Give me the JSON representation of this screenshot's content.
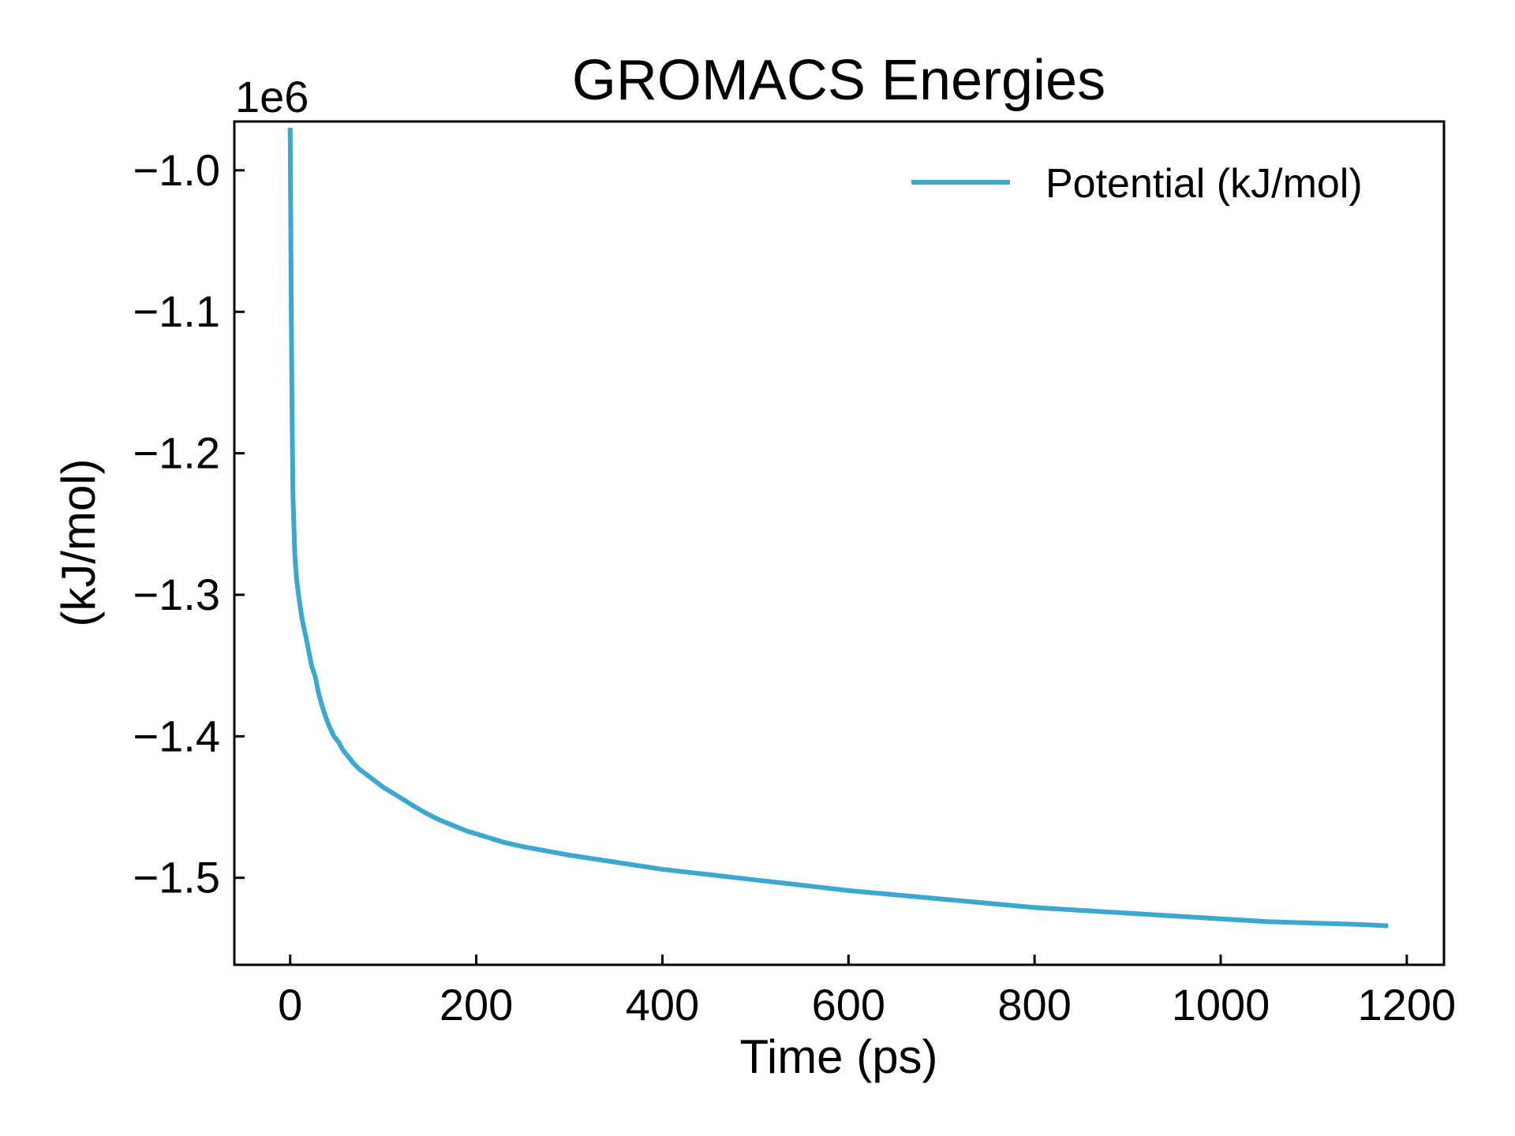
{
  "chart_data": {
    "type": "line",
    "title": "GROMACS Energies",
    "xlabel": "Time (ps)",
    "ylabel": "(kJ/mol)",
    "y_offset_label": "1e6",
    "xlim": [
      -60,
      1240
    ],
    "ylim": [
      -1.5615,
      -0.9655
    ],
    "xticks": [
      {
        "value": 0,
        "label": "0"
      },
      {
        "value": 200,
        "label": "200"
      },
      {
        "value": 400,
        "label": "400"
      },
      {
        "value": 600,
        "label": "600"
      },
      {
        "value": 800,
        "label": "800"
      },
      {
        "value": 1000,
        "label": "1000"
      },
      {
        "value": 1200,
        "label": "1200"
      }
    ],
    "yticks": [
      {
        "value": -1.0,
        "label": "−1.0"
      },
      {
        "value": -1.1,
        "label": "−1.1"
      },
      {
        "value": -1.2,
        "label": "−1.2"
      },
      {
        "value": -1.3,
        "label": "−1.3"
      },
      {
        "value": -1.4,
        "label": "−1.4"
      },
      {
        "value": -1.5,
        "label": "−1.5"
      }
    ],
    "grid": false,
    "legend_position": "top-right",
    "series": [
      {
        "name": "Potential (kJ/mol)",
        "color": "#3ba8d1",
        "x": [
          0,
          1,
          2,
          3,
          5,
          7,
          10,
          13,
          17,
          20,
          23,
          27,
          30,
          34,
          38,
          42,
          47,
          52,
          57,
          62,
          68,
          74,
          80,
          86,
          92,
          100,
          110,
          120,
          132,
          145,
          160,
          175,
          190,
          210,
          230,
          250,
          275,
          300,
          330,
          360,
          400,
          440,
          480,
          520,
          560,
          600,
          650,
          700,
          750,
          800,
          850,
          900,
          950,
          1000,
          1050,
          1100,
          1150,
          1180
        ],
        "y": [
          -0.97,
          -1.08,
          -1.17,
          -1.23,
          -1.272,
          -1.29,
          -1.305,
          -1.318,
          -1.33,
          -1.34,
          -1.35,
          -1.358,
          -1.368,
          -1.378,
          -1.386,
          -1.393,
          -1.4,
          -1.404,
          -1.41,
          -1.414,
          -1.419,
          -1.423,
          -1.426,
          -1.429,
          -1.432,
          -1.436,
          -1.44,
          -1.444,
          -1.449,
          -1.454,
          -1.459,
          -1.463,
          -1.467,
          -1.471,
          -1.475,
          -1.478,
          -1.481,
          -1.484,
          -1.487,
          -1.49,
          -1.494,
          -1.497,
          -1.5,
          -1.503,
          -1.506,
          -1.509,
          -1.512,
          -1.515,
          -1.518,
          -1.521,
          -1.523,
          -1.525,
          -1.527,
          -1.529,
          -1.531,
          -1.532,
          -1.533,
          -1.534
        ]
      }
    ]
  }
}
